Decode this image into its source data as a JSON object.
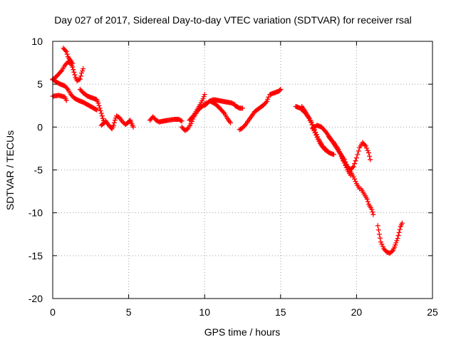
{
  "chart_data": {
    "type": "scatter",
    "title": "Day 027 of 2017, Sidereal Day-to-day VTEC variation (SDTVAR) for receiver rsal",
    "xlabel": "GPS time / hours",
    "ylabel": "SDTVAR / TECUs",
    "xlim": [
      0,
      25
    ],
    "ylim": [
      -20,
      10
    ],
    "xticks": [
      0,
      5,
      10,
      15,
      20,
      25
    ],
    "yticks": [
      -20,
      -15,
      -10,
      -5,
      0,
      5,
      10
    ],
    "grid": true,
    "marker": "+",
    "series_color": "#ff0000",
    "series": [
      {
        "name": "rsal",
        "segments": [
          [
            [
              0.0,
              5.5
            ],
            [
              0.3,
              6.0
            ],
            [
              0.6,
              6.6
            ],
            [
              0.8,
              7.2
            ],
            [
              1.0,
              7.6
            ],
            [
              1.2,
              7.4
            ],
            [
              1.3,
              7.0
            ],
            [
              1.4,
              6.4
            ],
            [
              1.5,
              5.8
            ],
            [
              1.6,
              5.4
            ],
            [
              1.8,
              5.6
            ],
            [
              1.9,
              6.3
            ],
            [
              2.0,
              6.8
            ]
          ],
          [
            [
              0.7,
              9.2
            ],
            [
              0.9,
              8.8
            ],
            [
              1.0,
              8.2
            ],
            [
              1.2,
              7.7
            ],
            [
              1.3,
              7.4
            ]
          ],
          [
            [
              0.0,
              5.6
            ],
            [
              0.2,
              5.3
            ],
            [
              0.5,
              5.0
            ],
            [
              0.8,
              4.8
            ],
            [
              1.0,
              4.4
            ],
            [
              1.2,
              3.8
            ],
            [
              1.4,
              3.4
            ],
            [
              1.7,
              3.1
            ],
            [
              2.0,
              2.9
            ],
            [
              2.3,
              2.6
            ],
            [
              2.6,
              2.3
            ],
            [
              2.9,
              2.0
            ]
          ],
          [
            [
              1.8,
              4.4
            ],
            [
              2.0,
              4.0
            ],
            [
              2.3,
              3.6
            ],
            [
              2.6,
              3.4
            ],
            [
              2.9,
              3.2
            ],
            [
              3.0,
              2.8
            ],
            [
              3.1,
              2.2
            ],
            [
              3.2,
              1.6
            ],
            [
              3.3,
              1.0
            ],
            [
              3.4,
              0.5
            ]
          ],
          [
            [
              0.0,
              3.6
            ],
            [
              0.4,
              3.7
            ],
            [
              0.8,
              3.5
            ],
            [
              0.9,
              3.1
            ]
          ],
          [
            [
              3.2,
              0.2
            ],
            [
              3.5,
              0.7
            ],
            [
              3.6,
              0.4
            ],
            [
              3.8,
              0.0
            ],
            [
              3.9,
              -0.2
            ],
            [
              4.0,
              0.2
            ],
            [
              4.1,
              0.8
            ],
            [
              4.2,
              1.3
            ],
            [
              4.4,
              1.1
            ],
            [
              4.6,
              0.6
            ],
            [
              4.8,
              0.3
            ],
            [
              5.0,
              0.6
            ],
            [
              5.1,
              0.8
            ],
            [
              5.2,
              0.4
            ],
            [
              5.3,
              0.0
            ]
          ],
          [
            [
              6.4,
              0.8
            ],
            [
              6.6,
              1.2
            ],
            [
              6.8,
              0.8
            ],
            [
              7.0,
              0.6
            ],
            [
              7.3,
              0.7
            ],
            [
              7.6,
              0.8
            ],
            [
              8.0,
              0.9
            ],
            [
              8.3,
              0.9
            ],
            [
              8.5,
              0.7
            ]
          ],
          [
            [
              8.5,
              0.0
            ],
            [
              8.7,
              -0.4
            ],
            [
              8.9,
              -0.2
            ],
            [
              9.1,
              0.4
            ],
            [
              9.3,
              1.2
            ],
            [
              9.5,
              1.8
            ],
            [
              9.7,
              2.2
            ],
            [
              9.9,
              2.5
            ],
            [
              10.1,
              2.8
            ]
          ],
          [
            [
              9.0,
              0.8
            ],
            [
              9.3,
              1.4
            ],
            [
              9.5,
              2.0
            ],
            [
              9.7,
              2.6
            ],
            [
              9.9,
              3.3
            ],
            [
              10.0,
              3.8
            ]
          ],
          [
            [
              10.0,
              2.5
            ],
            [
              10.3,
              3.0
            ],
            [
              10.6,
              3.2
            ],
            [
              10.9,
              3.1
            ],
            [
              11.2,
              3.0
            ],
            [
              11.5,
              2.9
            ],
            [
              11.8,
              2.8
            ],
            [
              12.0,
              2.6
            ]
          ],
          [
            [
              10.4,
              3.0
            ],
            [
              10.7,
              2.7
            ],
            [
              11.0,
              2.2
            ],
            [
              11.3,
              1.6
            ],
            [
              11.5,
              1.0
            ],
            [
              11.7,
              0.5
            ]
          ],
          [
            [
              12.0,
              2.5
            ],
            [
              12.3,
              2.2
            ],
            [
              12.5,
              2.2
            ]
          ],
          [
            [
              12.3,
              -0.3
            ],
            [
              12.5,
              -0.1
            ],
            [
              12.7,
              0.3
            ],
            [
              12.9,
              0.8
            ],
            [
              13.1,
              1.3
            ],
            [
              13.3,
              1.8
            ],
            [
              13.6,
              2.2
            ],
            [
              13.9,
              2.6
            ],
            [
              14.1,
              3.0
            ],
            [
              14.2,
              3.5
            ]
          ],
          [
            [
              14.3,
              3.8
            ],
            [
              14.6,
              4.0
            ],
            [
              14.9,
              4.2
            ],
            [
              15.0,
              4.4
            ]
          ],
          [
            [
              16.0,
              2.4
            ],
            [
              16.3,
              2.2
            ],
            [
              16.6,
              1.7
            ],
            [
              16.9,
              1.0
            ],
            [
              17.1,
              0.3
            ],
            [
              17.3,
              -0.6
            ],
            [
              17.5,
              -1.4
            ],
            [
              17.7,
              -2.0
            ],
            [
              17.9,
              -2.6
            ],
            [
              18.2,
              -3.0
            ],
            [
              18.5,
              -3.2
            ]
          ],
          [
            [
              16.4,
              2.4
            ],
            [
              16.7,
              1.6
            ],
            [
              17.0,
              0.6
            ],
            [
              17.2,
              -0.4
            ],
            [
              17.4,
              -1.2
            ],
            [
              17.6,
              -1.9
            ],
            [
              17.8,
              -2.4
            ],
            [
              18.0,
              -2.6
            ]
          ],
          [
            [
              17.1,
              -0.2
            ],
            [
              17.4,
              0.2
            ],
            [
              17.7,
              0.0
            ],
            [
              18.0,
              -0.6
            ],
            [
              18.3,
              -1.4
            ],
            [
              18.6,
              -2.2
            ],
            [
              18.9,
              -3.0
            ],
            [
              19.2,
              -3.8
            ],
            [
              19.4,
              -4.6
            ],
            [
              19.6,
              -5.2
            ],
            [
              19.8,
              -5.8
            ],
            [
              20.0,
              -6.6
            ],
            [
              20.2,
              -7.2
            ]
          ],
          [
            [
              18.2,
              -1.2
            ],
            [
              18.5,
              -1.8
            ],
            [
              18.8,
              -2.6
            ],
            [
              19.0,
              -3.4
            ],
            [
              19.2,
              -4.2
            ],
            [
              19.4,
              -5.0
            ],
            [
              19.6,
              -5.6
            ]
          ],
          [
            [
              19.0,
              -3.4
            ],
            [
              19.3,
              -4.4
            ],
            [
              19.6,
              -5.0
            ],
            [
              19.8,
              -4.6
            ],
            [
              20.0,
              -3.6
            ],
            [
              20.2,
              -2.4
            ],
            [
              20.4,
              -1.8
            ],
            [
              20.6,
              -2.2
            ],
            [
              20.8,
              -3.0
            ],
            [
              20.9,
              -3.8
            ]
          ],
          [
            [
              20.3,
              -7.2
            ],
            [
              20.5,
              -7.8
            ],
            [
              20.7,
              -8.4
            ],
            [
              20.8,
              -9.0
            ],
            [
              21.0,
              -9.6
            ],
            [
              21.1,
              -10.2
            ]
          ],
          [
            [
              21.4,
              -11.5
            ],
            [
              21.5,
              -12.5
            ],
            [
              21.6,
              -13.4
            ],
            [
              21.8,
              -14.2
            ],
            [
              22.0,
              -14.6
            ],
            [
              22.2,
              -14.7
            ],
            [
              22.4,
              -14.4
            ],
            [
              22.5,
              -14.0
            ],
            [
              22.6,
              -13.5
            ],
            [
              22.7,
              -13.0
            ],
            [
              22.8,
              -12.3
            ],
            [
              22.9,
              -11.6
            ],
            [
              23.0,
              -11.2
            ]
          ]
        ]
      }
    ]
  }
}
